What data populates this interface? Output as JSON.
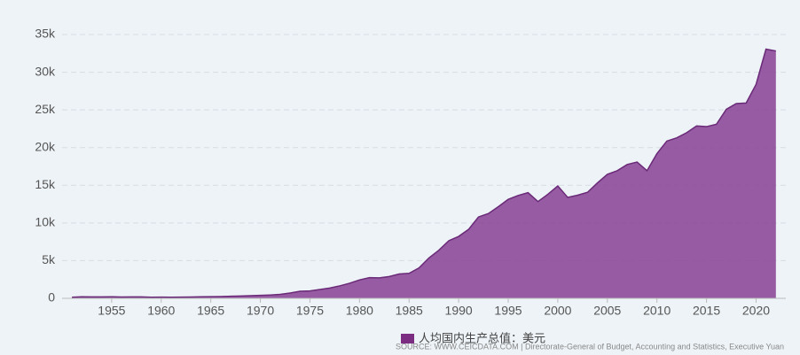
{
  "chart_data": {
    "type": "area",
    "series": [
      {
        "name": "人均国内生产总值：美元",
        "color": "#8c4a98",
        "line_color": "#6a2a78",
        "values": [
          154,
          200,
          186,
          197,
          211,
          169,
          184,
          190,
          148,
          157,
          151,
          164,
          179,
          205,
          220,
          241,
          272,
          309,
          350,
          393,
          447,
          529,
          705,
          944,
          985,
          1171,
          1366,
          1651,
          2006,
          2447,
          2746,
          2717,
          2897,
          3226,
          3321,
          4033,
          5355,
          6380,
          7639,
          8216,
          9142,
          10794,
          11250,
          12160,
          13129,
          13646,
          14020,
          12840,
          13804,
          14908,
          13397,
          13686,
          14066,
          15317,
          16456,
          16934,
          17757,
          18081,
          16933,
          19197,
          20866,
          21295,
          21973,
          22874,
          22780,
          23091,
          25080,
          25838,
          25908,
          28383,
          33059,
          32811
        ]
      }
    ],
    "x": [
      1951,
      1952,
      1953,
      1954,
      1955,
      1956,
      1957,
      1958,
      1959,
      1960,
      1961,
      1962,
      1963,
      1964,
      1965,
      1966,
      1967,
      1968,
      1969,
      1970,
      1971,
      1972,
      1973,
      1974,
      1975,
      1976,
      1977,
      1978,
      1979,
      1980,
      1981,
      1982,
      1983,
      1984,
      1985,
      1986,
      1987,
      1988,
      1989,
      1990,
      1991,
      1992,
      1993,
      1994,
      1995,
      1996,
      1997,
      1998,
      1999,
      2000,
      2001,
      2002,
      2003,
      2004,
      2005,
      2006,
      2007,
      2008,
      2009,
      2010,
      2011,
      2012,
      2013,
      2014,
      2015,
      2016,
      2017,
      2018,
      2019,
      2020,
      2021,
      2022
    ],
    "xlim": [
      1950,
      2023
    ],
    "xticks": [
      1955,
      1960,
      1965,
      1970,
      1975,
      1980,
      1985,
      1990,
      1995,
      2000,
      2005,
      2010,
      2015,
      2020
    ],
    "ylim": [
      0,
      35000
    ],
    "yticks": [
      0,
      {
        "value": 5000,
        "label": "5k"
      },
      {
        "value": 10000,
        "label": "10k"
      },
      {
        "value": 15000,
        "label": "15k"
      },
      {
        "value": 20000,
        "label": "20k"
      },
      {
        "value": 25000,
        "label": "25k"
      },
      {
        "value": 30000,
        "label": "30k"
      },
      {
        "value": 35000,
        "label": "35k"
      }
    ],
    "grid": true,
    "source": "SOURCE: WWW.CEICDATA.COM | Directorate-General of Budget, Accounting and Statistics, Executive Yuan"
  }
}
